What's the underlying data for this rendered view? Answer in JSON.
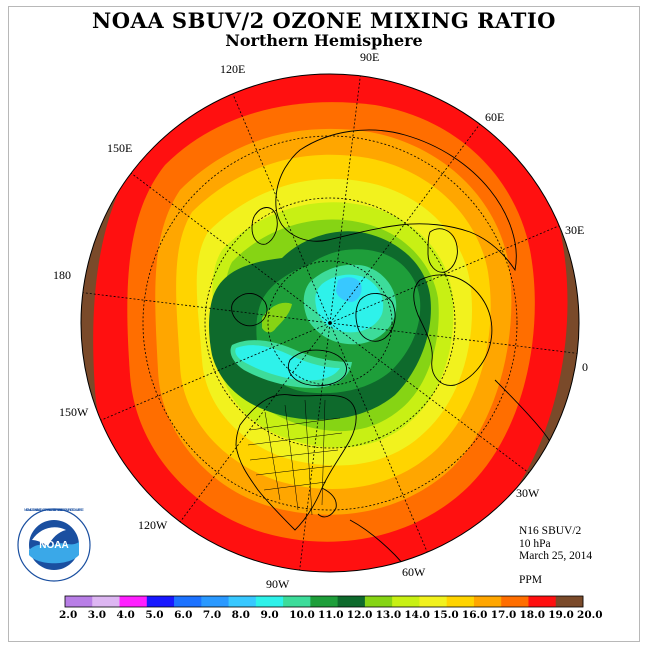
{
  "title": "NOAA SBUV/2 OZONE MIXING RATIO",
  "subtitle": "Northern Hemisphere",
  "longitude_labels": [
    "90E",
    "60E",
    "30E",
    "0",
    "30W",
    "60W",
    "90W",
    "120W",
    "150W",
    "180",
    "150E",
    "120E"
  ],
  "info": {
    "satellite": "N16 SBUV/2",
    "level": "10 hPa",
    "date": "March 25, 2014",
    "units": "PPM"
  },
  "logo_text": "NOAA",
  "logo_ring_text": "NATIONAL OCEANIC AND ATMOSPHERIC ADMINISTRATION · U.S. DEPARTMENT OF COMMERCE",
  "colorbar": {
    "labels": [
      "2.0",
      "3.0",
      "4.0",
      "5.0",
      "6.0",
      "7.0",
      "8.0",
      "9.0",
      "10.0",
      "11.0",
      "12.0",
      "13.0",
      "14.0",
      "15.0",
      "16.0",
      "17.0",
      "18.0",
      "19.0",
      "20.0"
    ],
    "colors": [
      "#b87ee6",
      "#ddb6f2",
      "#ff1fff",
      "#1818ff",
      "#1c72ff",
      "#2a99ff",
      "#38c8ff",
      "#2ef2ea",
      "#3ddc9a",
      "#1e9e3a",
      "#0e6a2c",
      "#86d414",
      "#c8f014",
      "#f2f21e",
      "#ffd400",
      "#ffa600",
      "#ff6e00",
      "#ff1010",
      "#7a4a2a"
    ]
  }
}
